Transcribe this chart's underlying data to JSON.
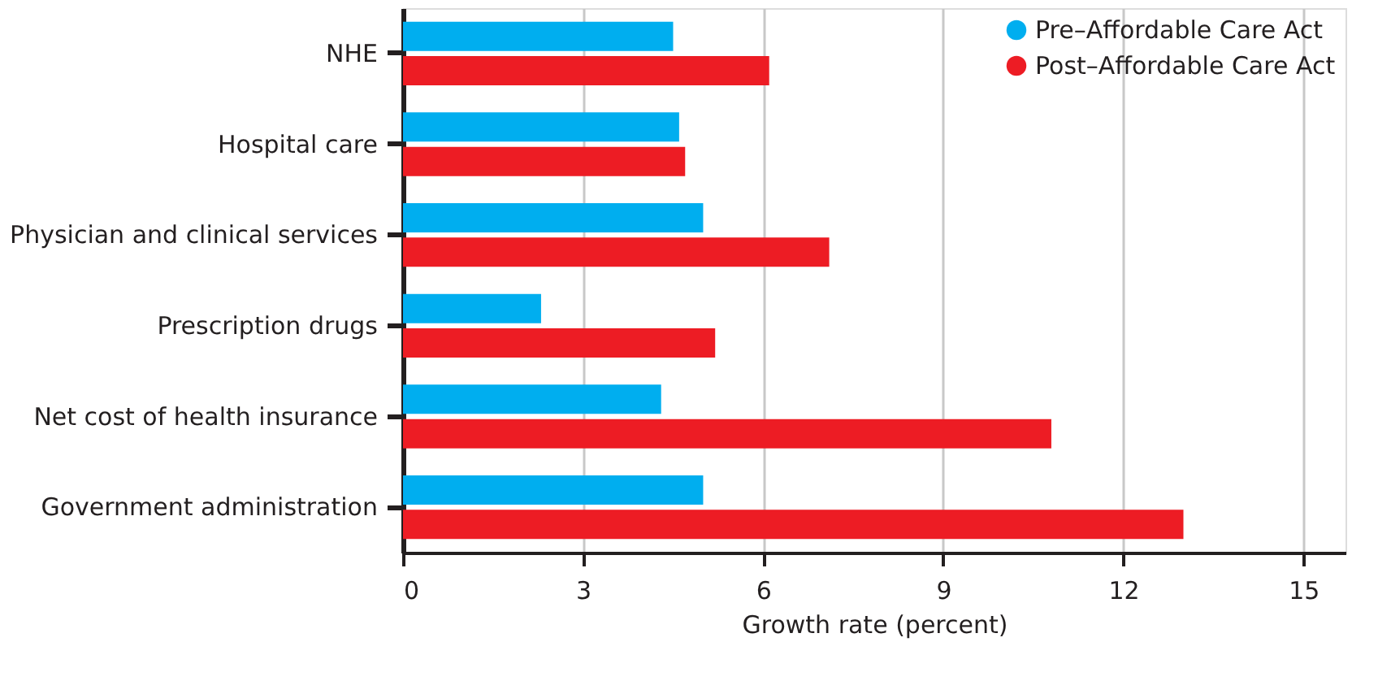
{
  "chart_data": {
    "type": "bar",
    "orientation": "horizontal",
    "xlabel": "Growth rate (percent)",
    "categories": [
      "NHE",
      "Hospital care",
      "Physician and clinical services",
      "Prescription drugs",
      "Net cost of health insurance",
      "Government administration"
    ],
    "series": [
      {
        "name": "Pre–Affordable Care Act",
        "color": "#00aeef",
        "values": [
          4.5,
          4.6,
          5.0,
          2.3,
          4.3,
          5.0
        ]
      },
      {
        "name": "Post–Affordable Care Act",
        "color": "#ed1c24",
        "values": [
          6.1,
          4.7,
          7.1,
          5.2,
          10.8,
          13.0
        ]
      }
    ],
    "xlim": [
      0,
      15.7
    ],
    "xticks": [
      0,
      3,
      6,
      9,
      12,
      15
    ],
    "grid": "x",
    "legend": "top right"
  }
}
